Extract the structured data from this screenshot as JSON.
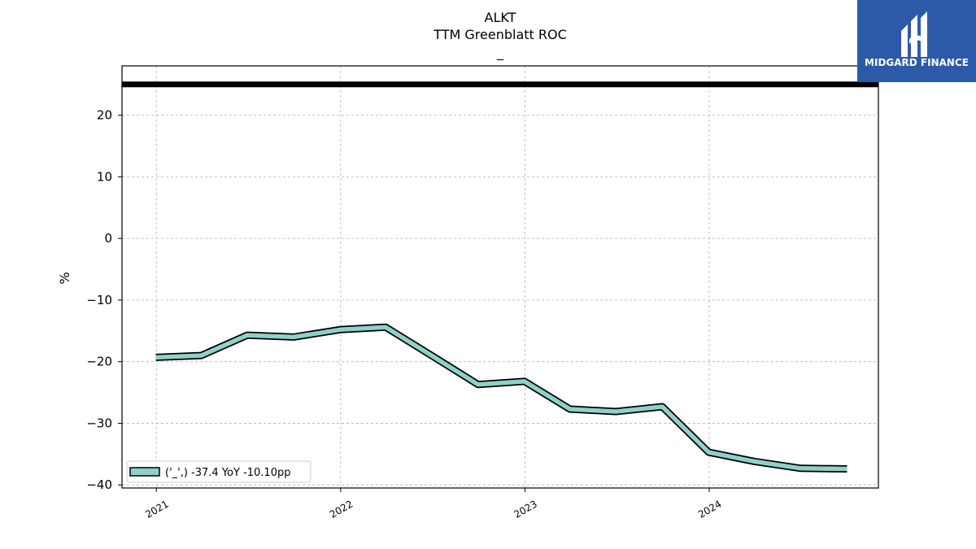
{
  "chart_data": {
    "type": "line",
    "title": "ALKT",
    "subtitle": "TTM Greenblatt ROC",
    "subtitle2": "_",
    "ylabel": "%",
    "xlabel": "",
    "ylim": [
      -40.5,
      28
    ],
    "xlim": [
      "2020-10-25",
      "2024-12-01"
    ],
    "yticks": [
      20,
      10,
      0,
      -10,
      -20,
      -30,
      -40
    ],
    "ytick_labels": [
      "20",
      "10",
      "0",
      "−10",
      "−20",
      "−30",
      "−40"
    ],
    "xticks": [
      "2021-01-01",
      "2022-01-01",
      "2023-01-01",
      "2024-01-01"
    ],
    "xtick_labels": [
      "2021",
      "2022",
      "2023",
      "2024"
    ],
    "grid": true,
    "legend_position": "lower-left",
    "reference_line": {
      "y": 25,
      "color": "#000000"
    },
    "series": [
      {
        "name": "('_',) -37.4 YoY -10.10pp",
        "color": "#8ed1c6",
        "x": [
          "2020-12-31",
          "2021-03-31",
          "2021-06-30",
          "2021-09-30",
          "2021-12-31",
          "2022-03-31",
          "2022-06-30",
          "2022-09-30",
          "2022-12-31",
          "2023-03-31",
          "2023-06-30",
          "2023-09-30",
          "2023-12-31",
          "2024-03-31",
          "2024-06-30",
          "2024-09-30"
        ],
        "values": [
          -19.3,
          -19.0,
          -15.7,
          -16.0,
          -14.8,
          -14.4,
          -19.0,
          -23.7,
          -23.2,
          -27.7,
          -28.1,
          -27.3,
          -34.7,
          -36.2,
          -37.3,
          -37.4
        ]
      }
    ]
  },
  "logo": {
    "text": "MIDGARD FINANCE",
    "bg_color": "#2d5aa8"
  }
}
